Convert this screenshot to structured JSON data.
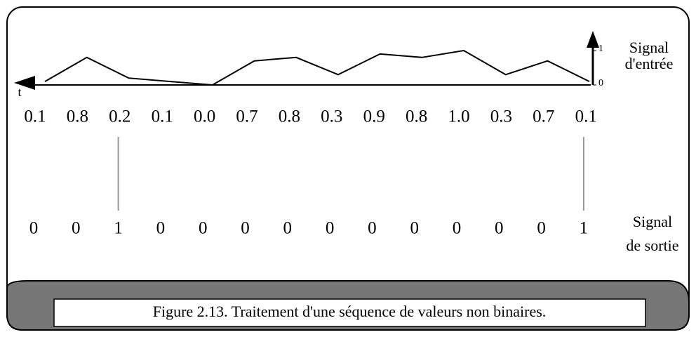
{
  "input": {
    "label_lines": [
      "Signal",
      "d'entrée"
    ],
    "values": [
      0.1,
      0.8,
      0.2,
      0.1,
      0.0,
      0.7,
      0.8,
      0.3,
      0.9,
      0.8,
      1.0,
      0.3,
      0.7,
      0.1
    ],
    "value_labels": [
      "0.1",
      "0.8",
      "0.2",
      "0.1",
      "0.0",
      "0.7",
      "0.8",
      "0.3",
      "0.9",
      "0.8",
      "1.0",
      "0.3",
      "0.7",
      "0.1"
    ],
    "ylim": [
      0,
      1
    ],
    "yticks": [
      0,
      1
    ],
    "time_label": "t"
  },
  "output": {
    "label_lines": [
      "Signal",
      "de sortie"
    ],
    "values": [
      0,
      0,
      1,
      0,
      0,
      0,
      0,
      0,
      0,
      0,
      0,
      0,
      0,
      1
    ]
  },
  "caption": "Figure 2.13. Traitement d'une séquence de valeurs non binaires."
}
